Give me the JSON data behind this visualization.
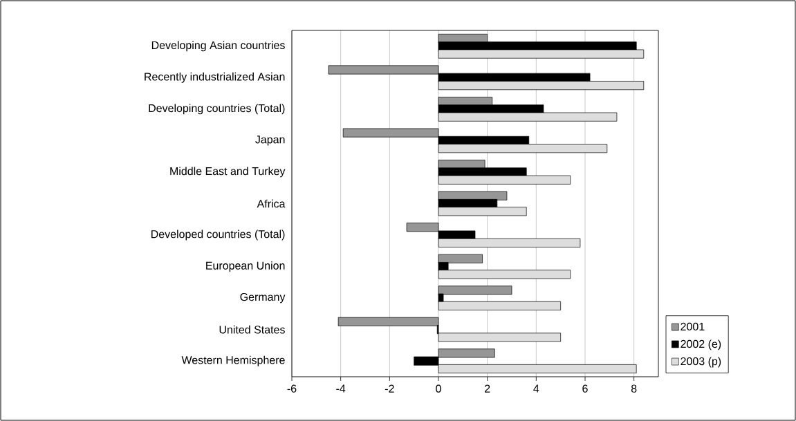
{
  "chart_data": {
    "type": "bar",
    "orientation": "horizontal",
    "categories": [
      "Developing Asian countries",
      "Recently industrialized Asian",
      "Developing countries (Total)",
      "Japan",
      "Middle East and Turkey",
      "Africa",
      "Developed countries (Total)",
      "European Union",
      "Germany",
      "United States",
      "Western Hemisphere"
    ],
    "series": [
      {
        "name": "2001",
        "color": "#969696",
        "values": [
          2.0,
          -4.5,
          2.2,
          -3.9,
          1.9,
          2.8,
          -1.3,
          1.8,
          3.0,
          -4.1,
          2.3
        ]
      },
      {
        "name": "2002 (e)",
        "color": "#000000",
        "values": [
          8.1,
          6.2,
          4.3,
          3.7,
          3.6,
          2.4,
          1.5,
          0.4,
          0.2,
          -0.05,
          -1.0
        ]
      },
      {
        "name": "2003 (p)",
        "color": "#dddddd",
        "values": [
          8.4,
          8.4,
          7.3,
          6.9,
          5.4,
          3.6,
          5.8,
          5.4,
          5.0,
          5.0,
          8.1
        ]
      }
    ],
    "xlim": [
      -6,
      9
    ],
    "xticks": [
      -6,
      -4,
      -2,
      0,
      2,
      4,
      6,
      8
    ],
    "grid": "x",
    "legend": "right"
  }
}
